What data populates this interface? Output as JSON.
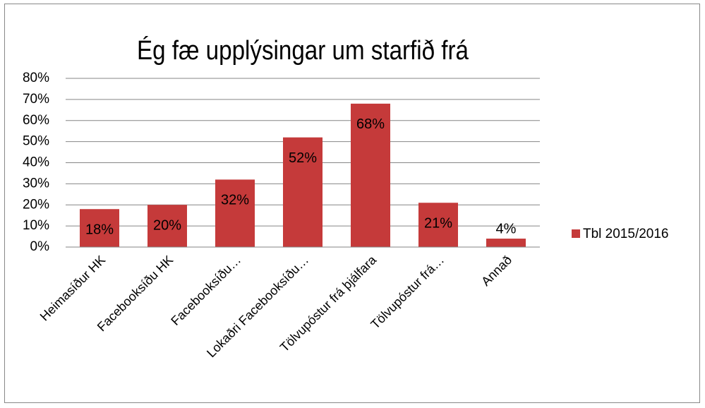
{
  "chart_data": {
    "type": "bar",
    "title": "Ég fæ upplýsingar um starfið frá",
    "categories": [
      "Heimasíður HK",
      "Facebooksíðu HK",
      "Facebooksíðu…",
      "Lokaðri Facebooksíðu…",
      "Tölvupóstur frá þjálfara",
      "Tölvupóstur frá…",
      "Annað"
    ],
    "series": [
      {
        "name": "Tbl 2015/2016",
        "color": "#c53a3a",
        "values": [
          18,
          20,
          32,
          52,
          68,
          21,
          4
        ],
        "value_labels": [
          "18%",
          "20%",
          "32%",
          "52%",
          "68%",
          "21%",
          "4%"
        ]
      }
    ],
    "ylim": [
      0,
      80
    ],
    "yticks": [
      {
        "value": 0,
        "label": "0%"
      },
      {
        "value": 10,
        "label": "10%"
      },
      {
        "value": 20,
        "label": "20%"
      },
      {
        "value": 30,
        "label": "30%"
      },
      {
        "value": 40,
        "label": "40%"
      },
      {
        "value": 50,
        "label": "50%"
      },
      {
        "value": 60,
        "label": "60%"
      },
      {
        "value": 70,
        "label": "70%"
      },
      {
        "value": 80,
        "label": "80%"
      }
    ],
    "grid": true,
    "legend": "right"
  }
}
